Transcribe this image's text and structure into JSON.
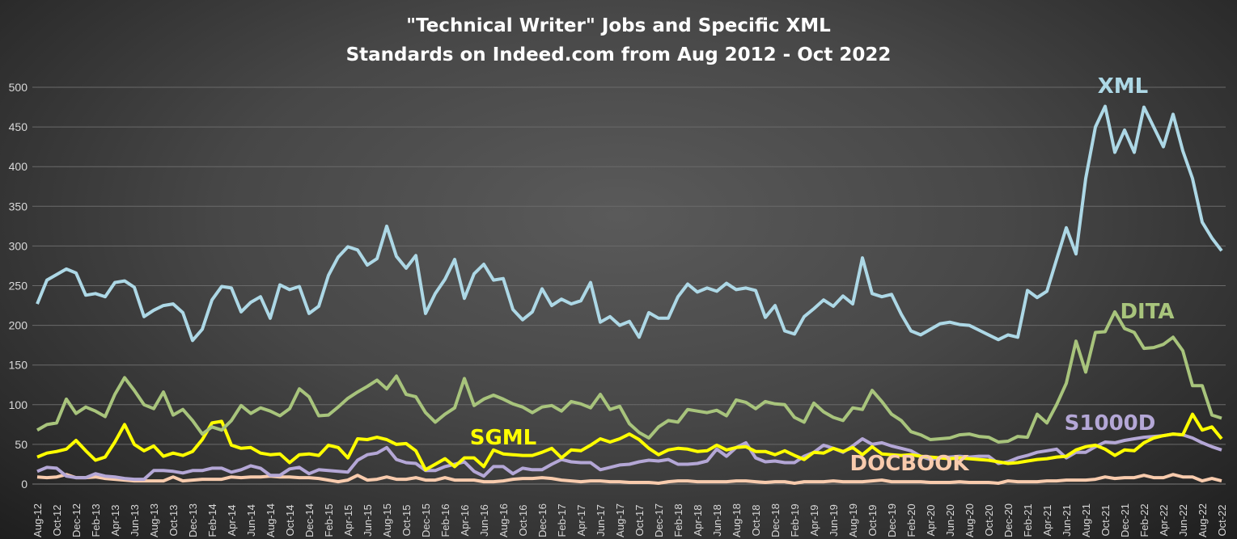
{
  "chart_data": {
    "type": "line",
    "title_lines": [
      "\"Technical Writer\" Jobs and Specific XML",
      "Standards on Indeed.com from Aug 2012 - Oct 2022"
    ],
    "xlabel": "",
    "ylabel": "",
    "ylim": [
      0,
      500
    ],
    "y_ticks": [
      "0",
      "50",
      "100",
      "150",
      "200",
      "250",
      "300",
      "350",
      "400",
      "450",
      "500"
    ],
    "grid": true,
    "legend": "inline labels",
    "x": [
      "Aug-12",
      "Sep-12",
      "Oct-12",
      "Nov-12",
      "Dec-12",
      "Jan-13",
      "Feb-13",
      "Mar-13",
      "Apr-13",
      "May-13",
      "Jun-13",
      "Jul-13",
      "Aug-13",
      "Sep-13",
      "Oct-13",
      "Nov-13",
      "Dec-13",
      "Jan-14",
      "Feb-14",
      "Mar-14",
      "Apr-14",
      "May-14",
      "Jun-14",
      "Jul-14",
      "Aug-14",
      "Sep-14",
      "Oct-14",
      "Nov-14",
      "Dec-14",
      "Jan-15",
      "Feb-15",
      "Mar-15",
      "Apr-15",
      "May-15",
      "Jun-15",
      "Jul-15",
      "Aug-15",
      "Sep-15",
      "Oct-15",
      "Nov-15",
      "Dec-15",
      "Jan-16",
      "Feb-16",
      "Mar-16",
      "Apr-16",
      "May-16",
      "Jun-16",
      "Jul-16",
      "Aug-16",
      "Sep-16",
      "Oct-16",
      "Nov-16",
      "Dec-16",
      "Jan-17",
      "Feb-17",
      "Mar-17",
      "Apr-17",
      "May-17",
      "Jun-17",
      "Jul-17",
      "Aug-17",
      "Sep-17",
      "Oct-17",
      "Nov-17",
      "Dec-17",
      "Jan-18",
      "Feb-18",
      "Mar-18",
      "Apr-18",
      "May-18",
      "Jun-18",
      "Jul-18",
      "Aug-18",
      "Sep-18",
      "Oct-18",
      "Nov-18",
      "Dec-18",
      "Jan-19",
      "Feb-19",
      "Mar-19",
      "Apr-19",
      "May-19",
      "Jun-19",
      "Jul-19",
      "Aug-19",
      "Sep-19",
      "Oct-19",
      "Nov-19",
      "Dec-19",
      "Jan-20",
      "Feb-20",
      "Mar-20",
      "Apr-20",
      "May-20",
      "Jun-20",
      "Jul-20",
      "Aug-20",
      "Sep-20",
      "Oct-20",
      "Nov-20",
      "Dec-20",
      "Jan-21",
      "Feb-21",
      "Mar-21",
      "Apr-21",
      "May-21",
      "Jun-21",
      "Jul-21",
      "Aug-21",
      "Sep-21",
      "Oct-21",
      "Nov-21",
      "Dec-21",
      "Jan-22",
      "Feb-22",
      "Mar-22",
      "Apr-22",
      "May-22",
      "Jun-22",
      "Jul-22",
      "Aug-22",
      "Sep-22",
      "Oct-22"
    ],
    "series": [
      {
        "name": "XML",
        "color": "#add8e6",
        "values": [
          227,
          257,
          264,
          271,
          266,
          238,
          240,
          236,
          254,
          256,
          248,
          211,
          219,
          225,
          227,
          216,
          181,
          195,
          232,
          249,
          247,
          217,
          229,
          236,
          209,
          251,
          245,
          249,
          215,
          224,
          263,
          286,
          299,
          295,
          276,
          284,
          325,
          287,
          272,
          288,
          215,
          240,
          258,
          283,
          234,
          265,
          277,
          257,
          259,
          220,
          207,
          217,
          246,
          225,
          233,
          227,
          231,
          254,
          204,
          211,
          200,
          205,
          185,
          216,
          209,
          209,
          236,
          252,
          242,
          247,
          243,
          253,
          245,
          247,
          244,
          210,
          225,
          193,
          189,
          211,
          221,
          232,
          224,
          237,
          227,
          285,
          240,
          236,
          239,
          214,
          193,
          188,
          195,
          202,
          204,
          201,
          200,
          194,
          188,
          182,
          188,
          185,
          244,
          235,
          243,
          283,
          323,
          290,
          385,
          450,
          476,
          418,
          446,
          418,
          475,
          450,
          425,
          466,
          420,
          385,
          330,
          310,
          294
        ]
      },
      {
        "name": "DITA",
        "color": "#a8c47c",
        "values": [
          68,
          75,
          77,
          107,
          89,
          97,
          92,
          85,
          113,
          134,
          118,
          100,
          95,
          116,
          87,
          94,
          80,
          63,
          72,
          68,
          80,
          99,
          89,
          96,
          92,
          86,
          95,
          120,
          110,
          86,
          87,
          97,
          108,
          116,
          123,
          131,
          120,
          136,
          113,
          110,
          90,
          78,
          88,
          96,
          133,
          99,
          107,
          112,
          107,
          101,
          97,
          90,
          97,
          99,
          92,
          104,
          101,
          96,
          113,
          94,
          98,
          76,
          65,
          58,
          72,
          80,
          78,
          94,
          92,
          90,
          93,
          86,
          106,
          103,
          95,
          104,
          101,
          100,
          84,
          78,
          102,
          91,
          84,
          80,
          96,
          94,
          118,
          104,
          88,
          80,
          66,
          62,
          56,
          57,
          58,
          62,
          63,
          60,
          59,
          53,
          54,
          60,
          59,
          88,
          77,
          100,
          127,
          180,
          141,
          191,
          192,
          217,
          196,
          191,
          171,
          172,
          176,
          185,
          168,
          124,
          124,
          87,
          83
        ]
      },
      {
        "name": "SGML",
        "color": "#ffff00",
        "values": [
          34,
          39,
          41,
          44,
          55,
          42,
          30,
          34,
          53,
          75,
          50,
          42,
          48,
          35,
          39,
          36,
          41,
          56,
          77,
          79,
          49,
          45,
          46,
          39,
          37,
          38,
          27,
          37,
          38,
          36,
          49,
          46,
          33,
          57,
          56,
          59,
          56,
          50,
          51,
          42,
          18,
          25,
          32,
          22,
          33,
          33,
          22,
          43,
          38,
          37,
          36,
          36,
          40,
          45,
          33,
          43,
          42,
          49,
          57,
          53,
          57,
          63,
          56,
          45,
          37,
          43,
          45,
          44,
          41,
          42,
          49,
          43,
          46,
          47,
          41,
          41,
          37,
          42,
          36,
          31,
          40,
          39,
          45,
          41,
          46,
          37,
          47,
          38,
          37,
          36,
          37,
          35,
          34,
          33,
          32,
          33,
          32,
          31,
          30,
          28,
          26,
          27,
          29,
          31,
          32,
          34,
          35,
          43,
          47,
          49,
          44,
          36,
          43,
          42,
          52,
          58,
          61,
          63,
          62,
          88,
          68,
          72,
          57
        ]
      },
      {
        "name": "S1000D",
        "color": "#b4a7d6",
        "values": [
          16,
          21,
          20,
          10,
          8,
          8,
          13,
          10,
          9,
          7,
          6,
          6,
          17,
          17,
          16,
          14,
          17,
          17,
          20,
          20,
          15,
          18,
          23,
          20,
          11,
          11,
          19,
          21,
          13,
          18,
          17,
          16,
          15,
          30,
          37,
          39,
          46,
          31,
          27,
          26,
          17,
          17,
          22,
          25,
          28,
          16,
          10,
          22,
          22,
          13,
          20,
          18,
          18,
          25,
          31,
          28,
          27,
          27,
          18,
          21,
          24,
          25,
          28,
          30,
          29,
          31,
          25,
          25,
          26,
          29,
          44,
          35,
          46,
          52,
          33,
          28,
          29,
          27,
          27,
          35,
          40,
          49,
          45,
          40,
          48,
          57,
          50,
          52,
          48,
          45,
          42,
          35,
          31,
          33,
          34,
          35,
          34,
          35,
          35,
          26,
          28,
          33,
          36,
          40,
          42,
          44,
          33,
          40,
          40,
          47,
          53,
          52,
          55,
          57,
          59,
          60,
          61,
          63,
          62,
          58,
          52,
          47,
          43
        ]
      },
      {
        "name": "DOCBOOK",
        "color": "#f8cbad",
        "values": [
          9,
          8,
          9,
          12,
          8,
          8,
          9,
          7,
          6,
          5,
          4,
          4,
          4,
          4,
          9,
          4,
          5,
          6,
          6,
          6,
          9,
          8,
          9,
          9,
          10,
          9,
          9,
          8,
          8,
          7,
          5,
          3,
          5,
          11,
          5,
          6,
          9,
          6,
          6,
          8,
          5,
          5,
          8,
          5,
          5,
          5,
          3,
          3,
          4,
          6,
          7,
          7,
          8,
          7,
          5,
          4,
          3,
          4,
          4,
          3,
          3,
          2,
          2,
          2,
          1,
          3,
          4,
          4,
          3,
          3,
          3,
          3,
          4,
          4,
          3,
          2,
          3,
          3,
          1,
          3,
          3,
          3,
          4,
          3,
          3,
          3,
          4,
          5,
          3,
          3,
          3,
          3,
          2,
          2,
          2,
          3,
          2,
          2,
          2,
          1,
          4,
          3,
          3,
          3,
          4,
          4,
          5,
          5,
          5,
          6,
          9,
          7,
          8,
          8,
          11,
          8,
          8,
          12,
          9,
          9,
          4,
          7,
          4
        ]
      }
    ]
  }
}
